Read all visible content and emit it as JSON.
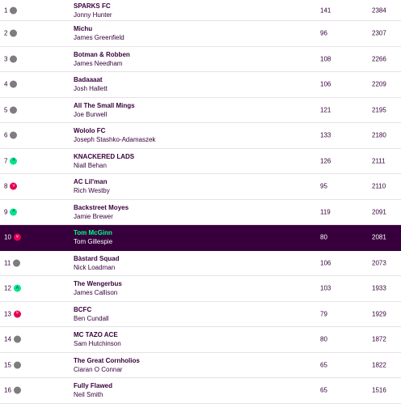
{
  "colors": {
    "brand_purple": "#37003c",
    "highlight_green": "#00ff87",
    "up": "#00e58a",
    "down": "#e90052",
    "same": "#7d7d7d"
  },
  "standings": [
    {
      "rank": "1",
      "movement": "same",
      "team": "SPARKS FC",
      "manager": "Jonny Hunter",
      "gw": "141",
      "total": "2384"
    },
    {
      "rank": "2",
      "movement": "same",
      "team": "Michu",
      "manager": "James Greenfield",
      "gw": "96",
      "total": "2307"
    },
    {
      "rank": "3",
      "movement": "same",
      "team": "Botman & Robben",
      "manager": "James Needham",
      "gw": "108",
      "total": "2266"
    },
    {
      "rank": "4",
      "movement": "same",
      "team": "Badaaaat",
      "manager": "Josh Hallett",
      "gw": "106",
      "total": "2209"
    },
    {
      "rank": "5",
      "movement": "same",
      "team": "All The Small Mings",
      "manager": "Joe Burwell",
      "gw": "121",
      "total": "2195"
    },
    {
      "rank": "6",
      "movement": "same",
      "team": "Wololo FC",
      "manager": "Joseph Stashko-Adamaszek",
      "gw": "133",
      "total": "2180"
    },
    {
      "rank": "7",
      "movement": "up",
      "team": "KNACKERED LADS",
      "manager": "Niall Behan",
      "gw": "126",
      "total": "2111"
    },
    {
      "rank": "8",
      "movement": "down",
      "team": "AC Lil'man",
      "manager": "Rich Westby",
      "gw": "95",
      "total": "2110"
    },
    {
      "rank": "9",
      "movement": "up",
      "team": "Backstreet Moyes",
      "manager": "Jamie Brewer",
      "gw": "119",
      "total": "2091"
    },
    {
      "rank": "10",
      "movement": "down",
      "team": "Tom McGinn",
      "manager": "Tom Gillespie",
      "gw": "80",
      "total": "2081"
    },
    {
      "rank": "11",
      "movement": "same",
      "team": "Bàstard Squad",
      "manager": "Nick Loadman",
      "gw": "106",
      "total": "2073"
    },
    {
      "rank": "12",
      "movement": "up",
      "team": "The Wengerbus",
      "manager": "James Callison",
      "gw": "103",
      "total": "1933"
    },
    {
      "rank": "13",
      "movement": "down",
      "team": "BCFC",
      "manager": "Ben Cundall",
      "gw": "79",
      "total": "1929"
    },
    {
      "rank": "14",
      "movement": "same",
      "team": "MC TAZO ACE",
      "manager": "Sam Hutchinson",
      "gw": "80",
      "total": "1872"
    },
    {
      "rank": "15",
      "movement": "same",
      "team": "The Great Cornholios",
      "manager": "Ciaran O Connar",
      "gw": "65",
      "total": "1822"
    },
    {
      "rank": "16",
      "movement": "same",
      "team": "Fully Flawed",
      "manager": "Neil Smith",
      "gw": "65",
      "total": "1516"
    }
  ]
}
